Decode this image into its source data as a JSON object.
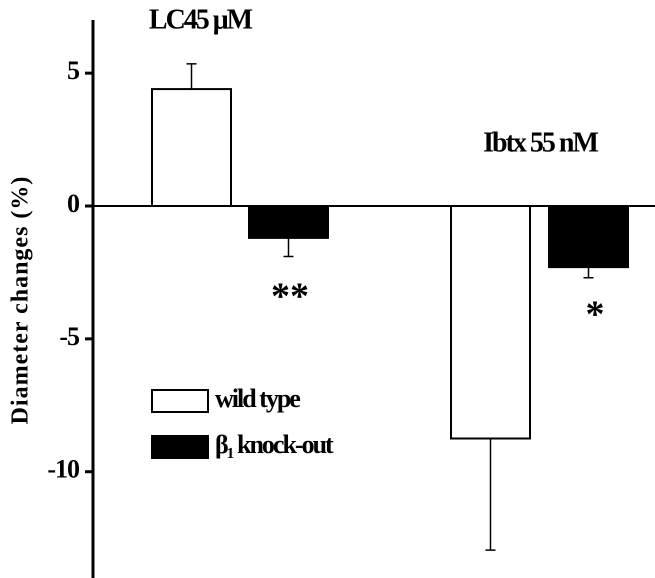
{
  "chart_data": {
    "type": "bar",
    "categories": [
      "LC45 μM",
      "Ibtx 55 nM"
    ],
    "y_label": "Diameter changes (%)",
    "series": [
      {
        "name": "wild type",
        "color": "#ffffff",
        "values": [
          4.4,
          -8.75
        ],
        "errors": [
          0.95,
          4.2
        ]
      },
      {
        "name": "β₁ knock-out",
        "color": "#000000",
        "values": [
          -1.2,
          -2.3
        ],
        "errors": [
          0.7,
          0.4
        ]
      }
    ],
    "annotations": [
      "**",
      "*"
    ],
    "ylim": [
      -14,
      7
    ],
    "yticks": [
      5,
      0,
      -5,
      -10
    ]
  }
}
